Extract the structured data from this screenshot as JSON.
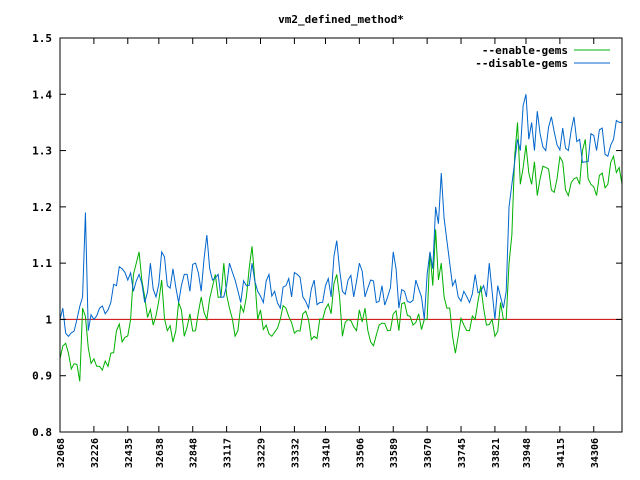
{
  "chart_data": {
    "type": "line",
    "title": "vm2_defined_method*",
    "ylim": [
      0.8,
      1.5
    ],
    "y_ticks": [
      "0.8",
      "0.9",
      "1",
      "1.1",
      "1.2",
      "1.3",
      "1.4",
      "1.5"
    ],
    "x_tick_labels": [
      "32068",
      "32226",
      "32435",
      "32638",
      "32848",
      "33117",
      "33229",
      "33332",
      "33410",
      "33506",
      "33589",
      "33670",
      "33745",
      "33821",
      "33948",
      "34115",
      "34306"
    ],
    "x_count": 200,
    "reference_line": 1.0,
    "legend_position": "top-right",
    "colors": {
      "reference": "#cc0000",
      "axis": "#000000"
    },
    "series": [
      {
        "name": "--enable-gems",
        "color": "#00b000",
        "anchors": [
          [
            0,
            0.93
          ],
          [
            3,
            0.94
          ],
          [
            6,
            0.92
          ],
          [
            7,
            0.89
          ],
          [
            8,
            1.02
          ],
          [
            10,
            0.95
          ],
          [
            12,
            0.93
          ],
          [
            15,
            0.91
          ],
          [
            18,
            0.94
          ],
          [
            20,
            0.98
          ],
          [
            22,
            0.96
          ],
          [
            25,
            1.0
          ],
          [
            26,
            1.08
          ],
          [
            28,
            1.12
          ],
          [
            30,
            1.04
          ],
          [
            33,
            0.99
          ],
          [
            36,
            1.07
          ],
          [
            38,
            0.98
          ],
          [
            40,
            0.96
          ],
          [
            42,
            1.03
          ],
          [
            44,
            0.97
          ],
          [
            46,
            1.01
          ],
          [
            48,
            0.98
          ],
          [
            50,
            1.04
          ],
          [
            52,
            1.0
          ],
          [
            55,
            1.08
          ],
          [
            57,
            1.04
          ],
          [
            58,
            1.1
          ],
          [
            60,
            1.02
          ],
          [
            63,
            0.98
          ],
          [
            66,
            1.04
          ],
          [
            68,
            1.13
          ],
          [
            70,
            1.0
          ],
          [
            73,
            0.99
          ],
          [
            75,
            0.97
          ],
          [
            78,
            1.0
          ],
          [
            80,
            1.02
          ],
          [
            84,
            0.98
          ],
          [
            86,
            1.01
          ],
          [
            88,
            1.0
          ],
          [
            90,
            0.97
          ],
          [
            93,
            1.0
          ],
          [
            96,
            1.01
          ],
          [
            98,
            1.08
          ],
          [
            100,
            0.97
          ],
          [
            102,
            1.0
          ],
          [
            105,
            0.98
          ],
          [
            108,
            1.02
          ],
          [
            110,
            0.96
          ],
          [
            113,
            0.99
          ],
          [
            116,
            0.98
          ],
          [
            118,
            1.01
          ],
          [
            120,
            0.98
          ],
          [
            122,
            1.03
          ],
          [
            125,
            0.99
          ],
          [
            127,
            1.01
          ],
          [
            129,
            1.0
          ],
          [
            130,
            1.0
          ],
          [
            131,
            1.12
          ],
          [
            132,
            1.06
          ],
          [
            133,
            1.16
          ],
          [
            134,
            1.07
          ],
          [
            135,
            1.1
          ],
          [
            136,
            1.04
          ],
          [
            137,
            1.02
          ],
          [
            138,
            1.02
          ],
          [
            139,
            0.97
          ],
          [
            140,
            0.94
          ],
          [
            141,
            0.97
          ],
          [
            143,
            0.99
          ],
          [
            145,
            0.98
          ],
          [
            147,
            1.0
          ],
          [
            149,
            1.06
          ],
          [
            150,
            1.02
          ],
          [
            151,
            0.99
          ],
          [
            153,
            1.0
          ],
          [
            154,
            0.97
          ],
          [
            156,
            1.03
          ],
          [
            157,
            1.0
          ],
          [
            158,
            1.0
          ],
          [
            159,
            1.1
          ],
          [
            160,
            1.15
          ],
          [
            161,
            1.29
          ],
          [
            162,
            1.35
          ],
          [
            163,
            1.24
          ],
          [
            164,
            1.27
          ],
          [
            165,
            1.31
          ],
          [
            166,
            1.26
          ],
          [
            167,
            1.24
          ],
          [
            168,
            1.28
          ],
          [
            169,
            1.22
          ],
          [
            170,
            1.25
          ],
          [
            172,
            1.27
          ],
          [
            174,
            1.23
          ],
          [
            176,
            1.25
          ],
          [
            178,
            1.28
          ],
          [
            180,
            1.22
          ],
          [
            182,
            1.25
          ],
          [
            184,
            1.24
          ],
          [
            185,
            1.3
          ],
          [
            186,
            1.32
          ],
          [
            187,
            1.25
          ],
          [
            188,
            1.24
          ],
          [
            190,
            1.22
          ],
          [
            192,
            1.26
          ],
          [
            194,
            1.24
          ],
          [
            196,
            1.29
          ],
          [
            198,
            1.27
          ],
          [
            199,
            1.24
          ]
        ]
      },
      {
        "name": "--disable-gems",
        "color": "#0066cc",
        "anchors": [
          [
            0,
            1.0
          ],
          [
            1,
            1.02
          ],
          [
            3,
            0.97
          ],
          [
            6,
            1.0
          ],
          [
            8,
            1.04
          ],
          [
            9,
            1.19
          ],
          [
            10,
            0.98
          ],
          [
            12,
            1.0
          ],
          [
            14,
            1.02
          ],
          [
            16,
            1.01
          ],
          [
            18,
            1.03
          ],
          [
            20,
            1.06
          ],
          [
            22,
            1.09
          ],
          [
            24,
            1.07
          ],
          [
            26,
            1.05
          ],
          [
            28,
            1.08
          ],
          [
            30,
            1.03
          ],
          [
            32,
            1.1
          ],
          [
            34,
            1.04
          ],
          [
            36,
            1.12
          ],
          [
            38,
            1.06
          ],
          [
            40,
            1.09
          ],
          [
            42,
            1.03
          ],
          [
            44,
            1.08
          ],
          [
            46,
            1.05
          ],
          [
            48,
            1.1
          ],
          [
            50,
            1.05
          ],
          [
            52,
            1.15
          ],
          [
            54,
            1.07
          ],
          [
            56,
            1.08
          ],
          [
            58,
            1.04
          ],
          [
            60,
            1.1
          ],
          [
            62,
            1.07
          ],
          [
            64,
            1.03
          ],
          [
            66,
            1.06
          ],
          [
            68,
            1.1
          ],
          [
            70,
            1.05
          ],
          [
            72,
            1.03
          ],
          [
            74,
            1.08
          ],
          [
            76,
            1.05
          ],
          [
            78,
            1.02
          ],
          [
            80,
            1.06
          ],
          [
            82,
            1.04
          ],
          [
            84,
            1.08
          ],
          [
            86,
            1.04
          ],
          [
            88,
            1.02
          ],
          [
            90,
            1.07
          ],
          [
            92,
            1.03
          ],
          [
            94,
            1.06
          ],
          [
            96,
            1.04
          ],
          [
            98,
            1.14
          ],
          [
            100,
            1.05
          ],
          [
            102,
            1.07
          ],
          [
            104,
            1.04
          ],
          [
            106,
            1.1
          ],
          [
            108,
            1.04
          ],
          [
            110,
            1.07
          ],
          [
            112,
            1.03
          ],
          [
            114,
            1.06
          ],
          [
            116,
            1.04
          ],
          [
            118,
            1.12
          ],
          [
            120,
            1.02
          ],
          [
            122,
            1.05
          ],
          [
            124,
            1.03
          ],
          [
            126,
            1.07
          ],
          [
            128,
            1.04
          ],
          [
            129,
            1.0
          ],
          [
            130,
            1.08
          ],
          [
            131,
            1.12
          ],
          [
            132,
            1.09
          ],
          [
            133,
            1.2
          ],
          [
            134,
            1.17
          ],
          [
            135,
            1.26
          ],
          [
            136,
            1.18
          ],
          [
            137,
            1.14
          ],
          [
            138,
            1.1
          ],
          [
            139,
            1.06
          ],
          [
            140,
            1.07
          ],
          [
            141,
            1.04
          ],
          [
            143,
            1.05
          ],
          [
            145,
            1.03
          ],
          [
            147,
            1.08
          ],
          [
            149,
            1.05
          ],
          [
            150,
            1.06
          ],
          [
            151,
            1.04
          ],
          [
            152,
            1.1
          ],
          [
            153,
            1.05
          ],
          [
            154,
            1.0
          ],
          [
            155,
            1.06
          ],
          [
            156,
            1.04
          ],
          [
            157,
            1.02
          ],
          [
            158,
            1.05
          ],
          [
            159,
            1.2
          ],
          [
            160,
            1.24
          ],
          [
            161,
            1.28
          ],
          [
            162,
            1.32
          ],
          [
            163,
            1.3
          ],
          [
            164,
            1.38
          ],
          [
            165,
            1.4
          ],
          [
            166,
            1.32
          ],
          [
            167,
            1.35
          ],
          [
            168,
            1.3
          ],
          [
            169,
            1.37
          ],
          [
            170,
            1.33
          ],
          [
            172,
            1.3
          ],
          [
            174,
            1.36
          ],
          [
            176,
            1.31
          ],
          [
            178,
            1.34
          ],
          [
            180,
            1.3
          ],
          [
            182,
            1.36
          ],
          [
            184,
            1.32
          ],
          [
            186,
            1.28
          ],
          [
            188,
            1.33
          ],
          [
            190,
            1.3
          ],
          [
            192,
            1.34
          ],
          [
            194,
            1.29
          ],
          [
            196,
            1.32
          ],
          [
            198,
            1.35
          ],
          [
            199,
            1.35
          ]
        ]
      }
    ]
  }
}
